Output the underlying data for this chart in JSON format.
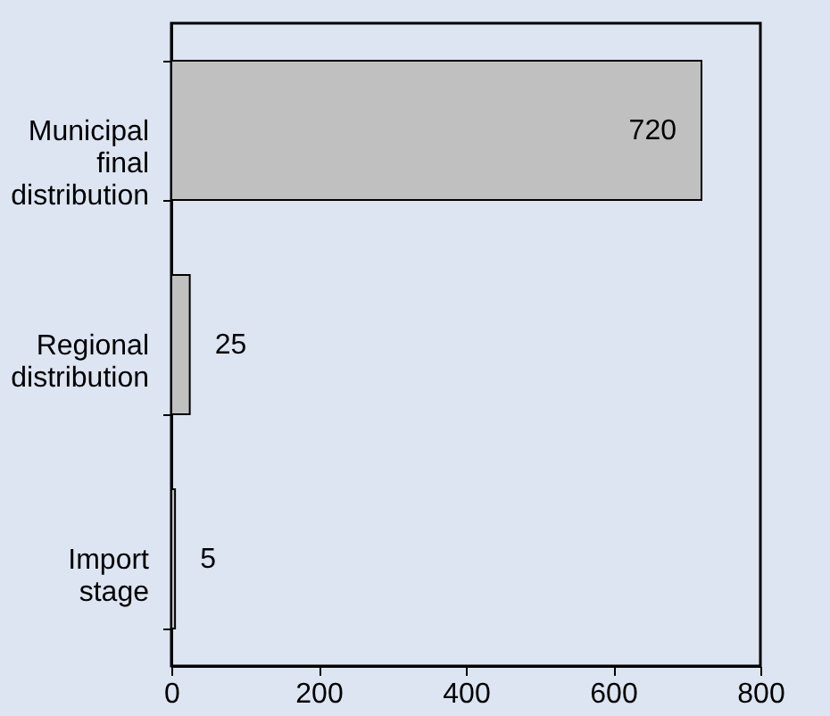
{
  "chart_data": {
    "type": "bar",
    "orientation": "horizontal",
    "categories": [
      "Municipal final distribution",
      "Regional distribution",
      "Import stage"
    ],
    "values": [
      720,
      25,
      5
    ],
    "color": "#c0c0c0",
    "xlim": [
      0,
      800
    ],
    "xticks": [
      0,
      200,
      400,
      600,
      800
    ],
    "grid": false,
    "data_labels": true
  }
}
